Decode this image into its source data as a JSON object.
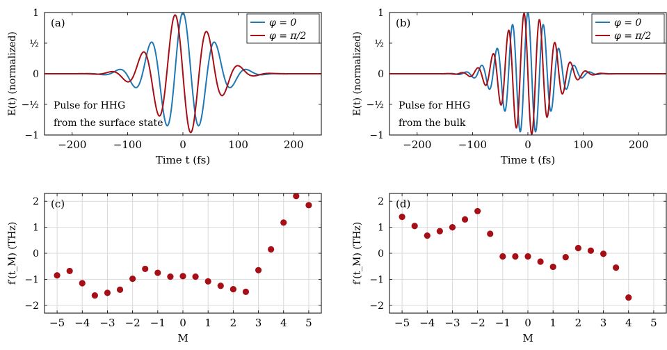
{
  "colors": {
    "blue": "#1f77b4",
    "red": "#a50f15",
    "grid": "#d9d9d9"
  },
  "chart_data": [
    {
      "id": "a",
      "type": "line",
      "panel_label": "(a)",
      "xlabel": "Time t (fs)",
      "ylabel": "E(t) (normalized)",
      "xlim": [
        -250,
        250
      ],
      "ylim": [
        -1,
        1
      ],
      "xticks": [
        -200,
        -100,
        0,
        100,
        200
      ],
      "xtick_labels": [
        "−200",
        "−100",
        "0",
        "100",
        "200"
      ],
      "yticks": [
        -1,
        -0.5,
        0,
        0.5,
        1
      ],
      "ytick_labels": [
        "−1",
        "−½",
        "0",
        "½",
        "1"
      ],
      "grid": false,
      "legend": "top-right",
      "annotation": [
        "Pulse for HHG",
        "from the surface state"
      ],
      "series": [
        {
          "name": "φ = 0",
          "color": "#1f77b4",
          "sigma_fs": 50,
          "omega": 0.1075,
          "phase": 0
        },
        {
          "name": "φ = π/2",
          "color": "#a50f15",
          "sigma_fs": 50,
          "omega": 0.1075,
          "phase": 1.5708
        }
      ]
    },
    {
      "id": "b",
      "type": "line",
      "panel_label": "(b)",
      "xlabel": "Time t (fs)",
      "ylabel": "E(t) (normalized)",
      "xlim": [
        -250,
        250
      ],
      "ylim": [
        -1,
        1
      ],
      "xticks": [
        -200,
        -100,
        0,
        100,
        200
      ],
      "xtick_labels": [
        "−200",
        "−100",
        "0",
        "100",
        "200"
      ],
      "yticks": [
        -1,
        -0.5,
        0,
        0.5,
        1
      ],
      "ytick_labels": [
        "−1",
        "−½",
        "0",
        "½",
        "1"
      ],
      "grid": false,
      "legend": "top-right",
      "annotation": [
        "Pulse for HHG",
        "from the bulk"
      ],
      "series": [
        {
          "name": "φ = 0",
          "color": "#1f77b4",
          "sigma_fs": 42,
          "omega": 0.2244,
          "phase": 0
        },
        {
          "name": "φ = π/2",
          "color": "#a50f15",
          "sigma_fs": 42,
          "omega": 0.2244,
          "phase": 1.5708
        }
      ]
    },
    {
      "id": "c",
      "type": "scatter",
      "panel_label": "(c)",
      "xlabel": "M",
      "ylabel": "f′(t_M) (THz)",
      "xlim": [
        -5.5,
        5.5
      ],
      "ylim": [
        -2.3,
        2.3
      ],
      "xticks": [
        -5,
        -4,
        -3,
        -2,
        -1,
        0,
        1,
        2,
        3,
        4,
        5
      ],
      "xtick_labels": [
        "−5",
        "−4",
        "−3",
        "−2",
        "−1",
        "0",
        "1",
        "2",
        "3",
        "4",
        "5"
      ],
      "yticks": [
        -2,
        -1,
        0,
        1,
        2
      ],
      "ytick_labels": [
        "−2",
        "−1",
        "0",
        "1",
        "2"
      ],
      "grid": true,
      "color": "#a50f15",
      "x": [
        -5,
        -4.5,
        -4,
        -3.5,
        -3,
        -2.5,
        -2,
        -1.5,
        -1,
        -0.5,
        0,
        0.5,
        1,
        1.5,
        2,
        2.5,
        3,
        3.5,
        4,
        4.5,
        5
      ],
      "y": [
        -0.85,
        -0.68,
        -1.15,
        -1.62,
        -1.52,
        -1.4,
        -0.98,
        -0.6,
        -0.75,
        -0.9,
        -0.88,
        -0.9,
        -1.08,
        -1.25,
        -1.38,
        -1.48,
        -0.65,
        0.15,
        1.18,
        2.2,
        1.85
      ]
    },
    {
      "id": "d",
      "type": "scatter",
      "panel_label": "(d)",
      "xlabel": "M",
      "ylabel": "f′(t_M) (THz)",
      "xlim": [
        -5.5,
        5.5
      ],
      "ylim": [
        -2.3,
        2.3
      ],
      "xticks": [
        -5,
        -4,
        -3,
        -2,
        -1,
        0,
        1,
        2,
        3,
        4,
        5
      ],
      "xtick_labels": [
        "−5",
        "−4",
        "−3",
        "−2",
        "−1",
        "0",
        "1",
        "2",
        "3",
        "4",
        "5"
      ],
      "yticks": [
        -2,
        -1,
        0,
        1,
        2
      ],
      "ytick_labels": [
        "−2",
        "−1",
        "0",
        "1",
        "2"
      ],
      "grid": true,
      "color": "#a50f15",
      "x": [
        -5,
        -4.5,
        -4,
        -3.5,
        -3,
        -2.5,
        -2,
        -1.5,
        -1,
        -0.5,
        0,
        0.5,
        1,
        1.5,
        2,
        2.5,
        3,
        3.5,
        4
      ],
      "y": [
        1.4,
        1.05,
        0.68,
        0.85,
        1.0,
        1.3,
        1.62,
        0.75,
        -0.12,
        -0.12,
        -0.12,
        -0.32,
        -0.52,
        -0.15,
        0.2,
        0.1,
        -0.02,
        -0.55,
        -1.7
      ]
    }
  ]
}
